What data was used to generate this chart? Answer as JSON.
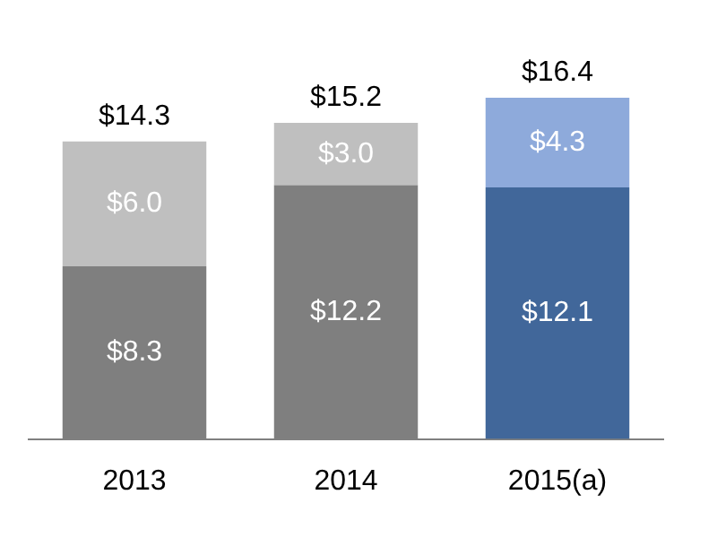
{
  "chart_data": {
    "type": "bar",
    "stacked": true,
    "tick_labels": "x",
    "categories": [
      "2013",
      "2014",
      "2015(a)"
    ],
    "series": [
      {
        "colors": [
          "#7f7f7f",
          "#7f7f7f",
          "#41679a"
        ],
        "values": [
          8.3,
          12.2,
          12.1
        ],
        "value_labels": [
          "$8.3",
          "$12.2",
          "$12.1"
        ]
      },
      {
        "colors": [
          "#bfbfbf",
          "#bfbfbf",
          "#8eaadb"
        ],
        "values": [
          6.0,
          3.0,
          4.3
        ],
        "value_labels": [
          "$6.0",
          "$3.0",
          "$4.3"
        ]
      }
    ],
    "totals": [
      "$14.3",
      "$15.2",
      "$16.4"
    ]
  }
}
